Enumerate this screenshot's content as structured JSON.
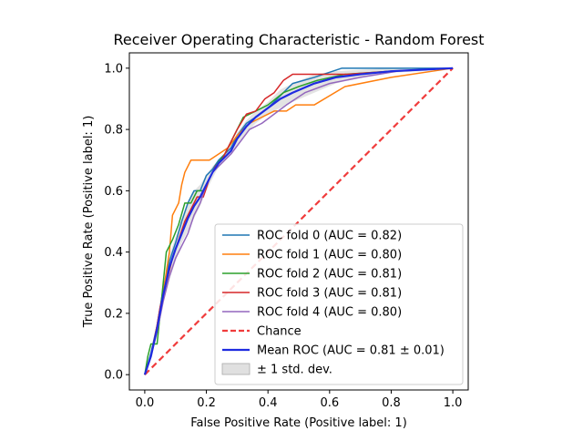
{
  "chart_data": {
    "type": "line",
    "title": "Receiver Operating Characteristic - Random Forest",
    "xlabel": "False Positive Rate (Positive label: 1)",
    "ylabel": "True Positive Rate (Positive label: 1)",
    "xlim": [
      -0.05,
      1.05
    ],
    "ylim": [
      -0.05,
      1.05
    ],
    "xticks": [
      "0.0",
      "0.2",
      "0.4",
      "0.6",
      "0.8",
      "1.0"
    ],
    "yticks": [
      "0.0",
      "0.2",
      "0.4",
      "0.6",
      "0.8",
      "1.0"
    ],
    "xtick_values": [
      0,
      0.2,
      0.4,
      0.6,
      0.8,
      1.0
    ],
    "ytick_values": [
      0,
      0.2,
      0.4,
      0.6,
      0.8,
      1.0
    ],
    "grid": false,
    "legend_position": "lower-right",
    "series": [
      {
        "name": "ROC fold 0 (AUC = 0.82)",
        "color": "#1f77b4",
        "style": "solid",
        "x": [
          0,
          0.02,
          0.04,
          0.06,
          0.08,
          0.1,
          0.12,
          0.14,
          0.16,
          0.18,
          0.2,
          0.22,
          0.24,
          0.26,
          0.28,
          0.3,
          0.33,
          0.36,
          0.4,
          0.44,
          0.48,
          0.55,
          0.64,
          0.8,
          1.0
        ],
        "y": [
          0,
          0.07,
          0.16,
          0.28,
          0.37,
          0.43,
          0.5,
          0.56,
          0.6,
          0.6,
          0.65,
          0.67,
          0.7,
          0.72,
          0.74,
          0.78,
          0.82,
          0.84,
          0.87,
          0.91,
          0.95,
          0.97,
          1.0,
          1.0,
          1.0
        ]
      },
      {
        "name": "ROC fold 1 (AUC = 0.80)",
        "color": "#ff7f0e",
        "style": "solid",
        "x": [
          0,
          0.02,
          0.04,
          0.06,
          0.08,
          0.09,
          0.11,
          0.12,
          0.13,
          0.15,
          0.17,
          0.19,
          0.21,
          0.24,
          0.27,
          0.3,
          0.34,
          0.38,
          0.42,
          0.46,
          0.49,
          0.55,
          0.65,
          0.8,
          1.0
        ],
        "y": [
          0,
          0.06,
          0.16,
          0.27,
          0.4,
          0.52,
          0.56,
          0.62,
          0.66,
          0.7,
          0.7,
          0.7,
          0.7,
          0.72,
          0.74,
          0.78,
          0.82,
          0.84,
          0.86,
          0.86,
          0.88,
          0.88,
          0.94,
          0.97,
          1.0
        ]
      },
      {
        "name": "ROC fold 2 (AUC = 0.81)",
        "color": "#2ca02c",
        "style": "solid",
        "x": [
          0,
          0.01,
          0.02,
          0.04,
          0.06,
          0.07,
          0.09,
          0.11,
          0.13,
          0.15,
          0.17,
          0.19,
          0.21,
          0.23,
          0.26,
          0.29,
          0.32,
          0.36,
          0.4,
          0.45,
          0.5,
          0.56,
          0.65,
          0.8,
          1.0
        ],
        "y": [
          0,
          0.06,
          0.1,
          0.1,
          0.3,
          0.4,
          0.44,
          0.49,
          0.56,
          0.56,
          0.6,
          0.6,
          0.64,
          0.68,
          0.72,
          0.78,
          0.84,
          0.86,
          0.88,
          0.92,
          0.94,
          0.96,
          0.98,
          0.99,
          1.0
        ]
      },
      {
        "name": "ROC fold 3 (AUC = 0.81)",
        "color": "#d62728",
        "style": "solid",
        "x": [
          0,
          0.02,
          0.04,
          0.05,
          0.07,
          0.09,
          0.11,
          0.13,
          0.15,
          0.17,
          0.19,
          0.21,
          0.23,
          0.25,
          0.27,
          0.3,
          0.33,
          0.36,
          0.39,
          0.42,
          0.45,
          0.48,
          0.55,
          0.66,
          0.8,
          1.0
        ],
        "y": [
          0,
          0.06,
          0.16,
          0.22,
          0.3,
          0.38,
          0.44,
          0.5,
          0.54,
          0.58,
          0.58,
          0.64,
          0.68,
          0.7,
          0.74,
          0.8,
          0.85,
          0.86,
          0.9,
          0.92,
          0.96,
          0.98,
          0.98,
          0.98,
          0.99,
          1.0
        ]
      },
      {
        "name": "ROC fold 4 (AUC = 0.80)",
        "color": "#9467bd",
        "style": "solid",
        "x": [
          0,
          0.02,
          0.04,
          0.06,
          0.08,
          0.1,
          0.12,
          0.14,
          0.16,
          0.18,
          0.2,
          0.22,
          0.24,
          0.26,
          0.28,
          0.31,
          0.34,
          0.38,
          0.42,
          0.46,
          0.52,
          0.6,
          0.7,
          0.82,
          1.0
        ],
        "y": [
          0,
          0.06,
          0.14,
          0.24,
          0.32,
          0.38,
          0.42,
          0.46,
          0.52,
          0.56,
          0.62,
          0.66,
          0.68,
          0.7,
          0.72,
          0.76,
          0.8,
          0.82,
          0.85,
          0.88,
          0.92,
          0.95,
          0.97,
          0.99,
          1.0
        ]
      },
      {
        "name": "Chance",
        "color": "#f03c3c",
        "style": "dashed",
        "x": [
          0,
          1
        ],
        "y": [
          0,
          1
        ]
      },
      {
        "name": "Mean ROC (AUC = 0.81 ± 0.01)",
        "color": "#1f2be0",
        "style": "solid-thick",
        "x": [
          0,
          0.02,
          0.04,
          0.06,
          0.08,
          0.1,
          0.12,
          0.14,
          0.16,
          0.18,
          0.2,
          0.22,
          0.24,
          0.26,
          0.28,
          0.3,
          0.33,
          0.36,
          0.4,
          0.44,
          0.48,
          0.55,
          0.62,
          0.7,
          0.8,
          0.9,
          1.0
        ],
        "y": [
          0,
          0.06,
          0.15,
          0.26,
          0.35,
          0.41,
          0.46,
          0.51,
          0.55,
          0.58,
          0.62,
          0.66,
          0.69,
          0.71,
          0.73,
          0.77,
          0.81,
          0.84,
          0.87,
          0.9,
          0.92,
          0.95,
          0.97,
          0.98,
          0.99,
          0.995,
          1.0
        ]
      }
    ],
    "band": {
      "name": "± 1 std. dev.",
      "color": "#cccccc",
      "x": [
        0,
        0.02,
        0.04,
        0.06,
        0.08,
        0.1,
        0.12,
        0.14,
        0.16,
        0.18,
        0.2,
        0.22,
        0.24,
        0.26,
        0.28,
        0.3,
        0.33,
        0.36,
        0.4,
        0.44,
        0.48,
        0.55,
        0.62,
        0.7,
        0.8,
        0.9,
        1.0
      ],
      "lower": [
        0,
        0.05,
        0.13,
        0.23,
        0.31,
        0.37,
        0.43,
        0.47,
        0.51,
        0.55,
        0.6,
        0.64,
        0.68,
        0.7,
        0.72,
        0.75,
        0.79,
        0.82,
        0.85,
        0.87,
        0.89,
        0.92,
        0.95,
        0.97,
        0.985,
        0.99,
        1.0
      ],
      "upper": [
        0,
        0.07,
        0.17,
        0.29,
        0.39,
        0.45,
        0.5,
        0.56,
        0.6,
        0.62,
        0.65,
        0.68,
        0.7,
        0.72,
        0.75,
        0.79,
        0.83,
        0.86,
        0.89,
        0.93,
        0.95,
        0.98,
        0.99,
        0.995,
        1.0,
        1.0,
        1.0
      ]
    }
  }
}
